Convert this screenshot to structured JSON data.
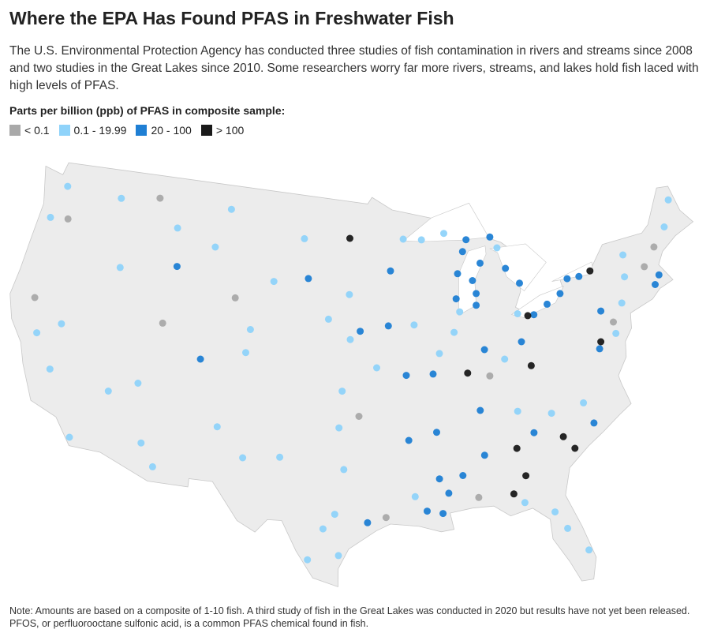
{
  "title": "Where the EPA Has Found PFAS in Freshwater Fish",
  "subtitle": "The U.S. Environmental Protection Agency has conducted three studies of fish contamination in rivers and streams since 2008 and two studies in the Great Lakes since 2010. Some researchers worry far more rivers, streams, and lakes hold fish laced with high levels of PFAS.",
  "legend": {
    "title": "Parts per billion (ppb) of PFAS in composite sample:",
    "items": [
      {
        "label": "< 0.1",
        "color": "#a9a9a9"
      },
      {
        "label": "0.1 - 19.99",
        "color": "#8fd3fa"
      },
      {
        "label": "20 - 100",
        "color": "#1f7fd4"
      },
      {
        "label": "> 100",
        "color": "#1a1a1a"
      }
    ]
  },
  "sites": [
    {
      "lon": -86.3,
      "lat": 42.5,
      "ppb": "20 - 100"
    },
    {
      "lon": -86.2,
      "lat": 43.2,
      "ppb": "20 - 100"
    },
    {
      "lon": -86.4,
      "lat": 44,
      "ppb": "20 - 100"
    },
    {
      "lon": -85.6,
      "lat": 45,
      "ppb": "20 - 100"
    },
    {
      "lon": -87.6,
      "lat": 44.5,
      "ppb": "20 - 100"
    },
    {
      "lon": -87.9,
      "lat": 43,
      "ppb": "20 - 100"
    },
    {
      "lon": -87.7,
      "lat": 42.2,
      "ppb": "0.1 - 19.99"
    },
    {
      "lon": -87,
      "lat": 45.8,
      "ppb": "20 - 100"
    },
    {
      "lon": -88.5,
      "lat": 47,
      "ppb": "0.1 - 19.99"
    },
    {
      "lon": -86.6,
      "lat": 46.5,
      "ppb": "20 - 100"
    },
    {
      "lon": -90.5,
      "lat": 46.7,
      "ppb": "0.1 - 19.99"
    },
    {
      "lon": -84.5,
      "lat": 46.5,
      "ppb": "20 - 100"
    },
    {
      "lon": -83.5,
      "lat": 44.5,
      "ppb": "20 - 100"
    },
    {
      "lon": -82.5,
      "lat": 43.5,
      "ppb": "20 - 100"
    },
    {
      "lon": -84,
      "lat": 45.8,
      "ppb": "0.1 - 19.99"
    },
    {
      "lon": -81.7,
      "lat": 41.5,
      "ppb": "20 - 100"
    },
    {
      "lon": -80.5,
      "lat": 42,
      "ppb": "20 - 100"
    },
    {
      "lon": -79.3,
      "lat": 42.5,
      "ppb": "20 - 100"
    },
    {
      "lon": -83,
      "lat": 41.7,
      "ppb": "0.1 - 19.99"
    },
    {
      "lon": -82.2,
      "lat": 41.5,
      "ppb": "> 100"
    },
    {
      "lon": -77.5,
      "lat": 43.3,
      "ppb": "20 - 100"
    },
    {
      "lon": -76.5,
      "lat": 43.5,
      "ppb": "> 100"
    },
    {
      "lon": -78.5,
      "lat": 43.3,
      "ppb": "20 - 100"
    },
    {
      "lon": -73.8,
      "lat": 42.7,
      "ppb": "0.1 - 19.99"
    },
    {
      "lon": -73.5,
      "lat": 44,
      "ppb": "0.1 - 19.99"
    },
    {
      "lon": -72,
      "lat": 43,
      "ppb": "< 0.1"
    },
    {
      "lon": -71,
      "lat": 42.3,
      "ppb": "20 - 100"
    },
    {
      "lon": -71.5,
      "lat": 41.8,
      "ppb": "20 - 100"
    },
    {
      "lon": -69.5,
      "lat": 45,
      "ppb": "0.1 - 19.99"
    },
    {
      "lon": -68.5,
      "lat": 46.5,
      "ppb": "0.1 - 19.99"
    },
    {
      "lon": -70.8,
      "lat": 44,
      "ppb": "< 0.1"
    },
    {
      "lon": -74.5,
      "lat": 41.2,
      "ppb": "0.1 - 19.99"
    },
    {
      "lon": -75.5,
      "lat": 40.2,
      "ppb": "< 0.1"
    },
    {
      "lon": -76.8,
      "lat": 39.2,
      "ppb": "> 100"
    },
    {
      "lon": -77,
      "lat": 38.8,
      "ppb": "20 - 100"
    },
    {
      "lon": -75.5,
      "lat": 39.5,
      "ppb": "0.1 - 19.99"
    },
    {
      "lon": -76.3,
      "lat": 41,
      "ppb": "20 - 100"
    },
    {
      "lon": -80.9,
      "lat": 34,
      "ppb": "> 100"
    },
    {
      "lon": -80.2,
      "lat": 33.2,
      "ppb": "> 100"
    },
    {
      "lon": -84.4,
      "lat": 33.7,
      "ppb": "> 100"
    },
    {
      "lon": -84,
      "lat": 32,
      "ppb": "> 100"
    },
    {
      "lon": -85,
      "lat": 31,
      "ppb": "> 100"
    },
    {
      "lon": -81.5,
      "lat": 35.5,
      "ppb": "0.1 - 19.99"
    },
    {
      "lon": -79,
      "lat": 35.8,
      "ppb": "0.1 - 19.99"
    },
    {
      "lon": -78.5,
      "lat": 34.5,
      "ppb": "20 - 100"
    },
    {
      "lon": -83,
      "lat": 34.5,
      "ppb": "20 - 100"
    },
    {
      "lon": -82.3,
      "lat": 29.6,
      "ppb": "0.1 - 19.99"
    },
    {
      "lon": -81.6,
      "lat": 28.5,
      "ppb": "0.1 - 19.99"
    },
    {
      "lon": -80.4,
      "lat": 27,
      "ppb": "0.1 - 19.99"
    },
    {
      "lon": -84.3,
      "lat": 30.4,
      "ppb": "0.1 - 19.99"
    },
    {
      "lon": -86.8,
      "lat": 33.5,
      "ppb": "20 - 100"
    },
    {
      "lon": -88.5,
      "lat": 32.4,
      "ppb": "20 - 100"
    },
    {
      "lon": -87.5,
      "lat": 31,
      "ppb": "< 0.1"
    },
    {
      "lon": -89.6,
      "lat": 31.4,
      "ppb": "20 - 100"
    },
    {
      "lon": -90.1,
      "lat": 30.2,
      "ppb": "20 - 100"
    },
    {
      "lon": -91.2,
      "lat": 30.4,
      "ppb": "20 - 100"
    },
    {
      "lon": -92,
      "lat": 31.3,
      "ppb": "0.1 - 19.99"
    },
    {
      "lon": -90.2,
      "lat": 32.3,
      "ppb": "20 - 100"
    },
    {
      "lon": -87.5,
      "lat": 38.5,
      "ppb": "> 100"
    },
    {
      "lon": -86,
      "lat": 39.8,
      "ppb": "20 - 100"
    },
    {
      "lon": -84.5,
      "lat": 39.1,
      "ppb": "0.1 - 19.99"
    },
    {
      "lon": -83,
      "lat": 40,
      "ppb": "20 - 100"
    },
    {
      "lon": -82.5,
      "lat": 38.5,
      "ppb": "> 100"
    },
    {
      "lon": -85.8,
      "lat": 38.2,
      "ppb": "< 0.1"
    },
    {
      "lon": -88.3,
      "lat": 41,
      "ppb": "0.1 - 19.99"
    },
    {
      "lon": -89.6,
      "lat": 39.8,
      "ppb": "0.1 - 19.99"
    },
    {
      "lon": -90.2,
      "lat": 38.6,
      "ppb": "20 - 100"
    },
    {
      "lon": -91.5,
      "lat": 41.6,
      "ppb": "0.1 - 19.99"
    },
    {
      "lon": -93.6,
      "lat": 41.6,
      "ppb": "20 - 100"
    },
    {
      "lon": -93.3,
      "lat": 44.9,
      "ppb": "20 - 100"
    },
    {
      "lon": -92.1,
      "lat": 46.8,
      "ppb": "0.1 - 19.99"
    },
    {
      "lon": -95.9,
      "lat": 41.3,
      "ppb": "20 - 100"
    },
    {
      "lon": -94.6,
      "lat": 39.1,
      "ppb": "0.1 - 19.99"
    },
    {
      "lon": -92.3,
      "lat": 38.6,
      "ppb": "20 - 100"
    },
    {
      "lon": -90.2,
      "lat": 35.1,
      "ppb": "20 - 100"
    },
    {
      "lon": -92.3,
      "lat": 34.7,
      "ppb": "20 - 100"
    },
    {
      "lon": -86.8,
      "lat": 36.2,
      "ppb": "20 - 100"
    },
    {
      "lon": -84,
      "lat": 35.9,
      "ppb": "0.1 - 19.99"
    },
    {
      "lon": -97.5,
      "lat": 35.5,
      "ppb": "0.1 - 19.99"
    },
    {
      "lon": -96,
      "lat": 36.2,
      "ppb": "< 0.1"
    },
    {
      "lon": -97.3,
      "lat": 37.7,
      "ppb": "0.1 - 19.99"
    },
    {
      "lon": -96.7,
      "lat": 40.8,
      "ppb": "0.1 - 19.99"
    },
    {
      "lon": -98.5,
      "lat": 42,
      "ppb": "0.1 - 19.99"
    },
    {
      "lon": -100.8,
      "lat": 46.8,
      "ppb": "0.1 - 19.99"
    },
    {
      "lon": -96.8,
      "lat": 46.9,
      "ppb": "> 100"
    },
    {
      "lon": -96.8,
      "lat": 43.5,
      "ppb": "0.1 - 19.99"
    },
    {
      "lon": -97.1,
      "lat": 33,
      "ppb": "0.1 - 19.99"
    },
    {
      "lon": -95.4,
      "lat": 29.8,
      "ppb": "20 - 100"
    },
    {
      "lon": -98.5,
      "lat": 29.4,
      "ppb": "0.1 - 19.99"
    },
    {
      "lon": -97.7,
      "lat": 30.3,
      "ppb": "0.1 - 19.99"
    },
    {
      "lon": -101.8,
      "lat": 33.6,
      "ppb": "0.1 - 19.99"
    },
    {
      "lon": -99.5,
      "lat": 27.5,
      "ppb": "0.1 - 19.99"
    },
    {
      "lon": -97.4,
      "lat": 27.8,
      "ppb": "0.1 - 19.99"
    },
    {
      "lon": -94.1,
      "lat": 30.1,
      "ppb": "< 0.1"
    },
    {
      "lon": -122.3,
      "lat": 47.6,
      "ppb": "0.1 - 19.99"
    },
    {
      "lon": -123,
      "lat": 45.5,
      "ppb": "0.1 - 19.99"
    },
    {
      "lon": -121.5,
      "lat": 45.7,
      "ppb": "< 0.1"
    },
    {
      "lon": -117.4,
      "lat": 47.7,
      "ppb": "0.1 - 19.99"
    },
    {
      "lon": -116.2,
      "lat": 43.6,
      "ppb": "0.1 - 19.99"
    },
    {
      "lon": -112,
      "lat": 46.6,
      "ppb": "0.1 - 19.99"
    },
    {
      "lon": -108.5,
      "lat": 45.8,
      "ppb": "0.1 - 19.99"
    },
    {
      "lon": -106.3,
      "lat": 42.9,
      "ppb": "< 0.1"
    },
    {
      "lon": -104.8,
      "lat": 41.1,
      "ppb": "0.1 - 19.99"
    },
    {
      "lon": -105,
      "lat": 39.7,
      "ppb": "0.1 - 19.99"
    },
    {
      "lon": -108.5,
      "lat": 39,
      "ppb": "20 - 100"
    },
    {
      "lon": -111.9,
      "lat": 40.8,
      "ppb": "< 0.1"
    },
    {
      "lon": -112,
      "lat": 33.5,
      "ppb": "0.1 - 19.99"
    },
    {
      "lon": -110.9,
      "lat": 32.2,
      "ppb": "0.1 - 19.99"
    },
    {
      "lon": -106.6,
      "lat": 35.1,
      "ppb": "0.1 - 19.99"
    },
    {
      "lon": -104.5,
      "lat": 33.4,
      "ppb": "0.1 - 19.99"
    },
    {
      "lon": -115.1,
      "lat": 36.2,
      "ppb": "0.1 - 19.99"
    },
    {
      "lon": -119.8,
      "lat": 39.5,
      "ppb": "0.1 - 19.99"
    },
    {
      "lon": -121.5,
      "lat": 38.6,
      "ppb": "0.1 - 19.99"
    },
    {
      "lon": -119.8,
      "lat": 36.7,
      "ppb": "0.1 - 19.99"
    },
    {
      "lon": -117.2,
      "lat": 33,
      "ppb": "0.1 - 19.99"
    },
    {
      "lon": -122.4,
      "lat": 40.6,
      "ppb": "< 0.1"
    },
    {
      "lon": -113,
      "lat": 37,
      "ppb": "0.1 - 19.99"
    },
    {
      "lon": -103.2,
      "lat": 44.1,
      "ppb": "0.1 - 19.99"
    },
    {
      "lon": -100.3,
      "lat": 44.4,
      "ppb": "20 - 100"
    },
    {
      "lon": -107.5,
      "lat": 48.2,
      "ppb": "0.1 - 19.99"
    },
    {
      "lon": -114,
      "lat": 48.2,
      "ppb": "< 0.1"
    },
    {
      "lon": -111.5,
      "lat": 44.3,
      "ppb": "20 - 100"
    }
  ],
  "note": "Note: Amounts are based on a composite of 1-10 fish. A third study of fish in the Great Lakes was conducted in 2020 but results have not yet been released. PFOS, or perfluorooctane sulfonic acid, is a common PFAS chemical found in fish."
}
